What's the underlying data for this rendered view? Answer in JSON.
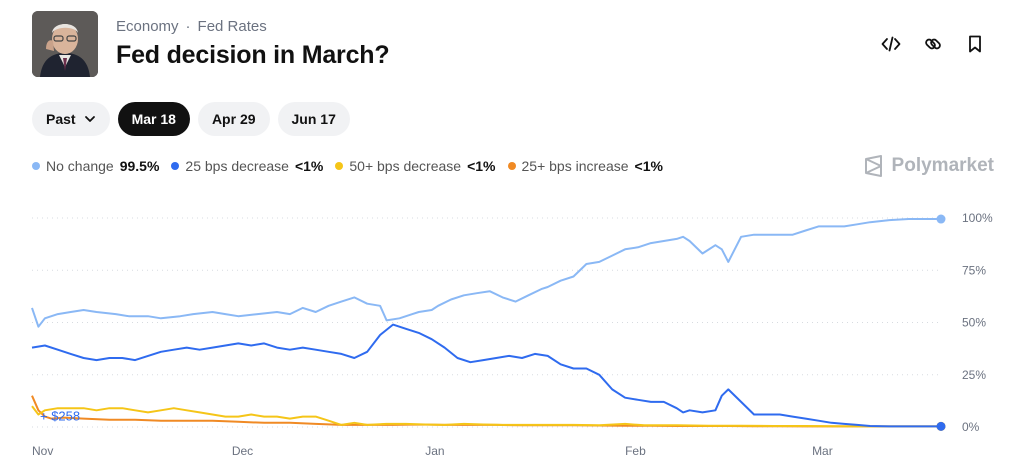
{
  "header": {
    "breadcrumb": [
      "Economy",
      "Fed Rates"
    ],
    "breadcrumb_separator": "·",
    "title": "Fed decision in March?",
    "avatar_icon": "person-portrait"
  },
  "actions": [
    {
      "name": "embed-button",
      "icon": "code-icon"
    },
    {
      "name": "copy-link-button",
      "icon": "link-icon"
    },
    {
      "name": "bookmark-button",
      "icon": "bookmark-icon"
    }
  ],
  "tabs": [
    {
      "label": "Past",
      "active": false,
      "dropdown": true
    },
    {
      "label": "Mar 18",
      "active": true
    },
    {
      "label": "Apr 29",
      "active": false
    },
    {
      "label": "Jun 17",
      "active": false
    }
  ],
  "legend": [
    {
      "label": "No change",
      "value": "99.5%",
      "color": "#8ab8f5"
    },
    {
      "label": "25 bps decrease",
      "value": "<1%",
      "color": "#2f6bef"
    },
    {
      "label": "50+ bps decrease",
      "value": "<1%",
      "color": "#f5c518"
    },
    {
      "label": "25+ bps increase",
      "value": "<1%",
      "color": "#f08a24"
    }
  ],
  "brand": "Polymarket",
  "annotation": "+ $258",
  "chart_data": {
    "type": "line",
    "x_ticks": [
      "Nov",
      "Dec",
      "Jan",
      "Feb",
      "Mar"
    ],
    "x_tick_days": [
      0,
      31,
      61,
      92,
      121
    ],
    "x_range": [
      0,
      141
    ],
    "ylim": [
      0,
      100
    ],
    "y_ticks": [
      "100%",
      "75%",
      "50%",
      "25%",
      "0%"
    ],
    "y_tick_values": [
      100,
      75,
      50,
      25,
      0
    ],
    "grid": true,
    "series": [
      {
        "name": "No change",
        "color": "#8ab8f5",
        "x": [
          0,
          1,
          2,
          4,
          6,
          8,
          10,
          13,
          15,
          18,
          20,
          23,
          25,
          28,
          30,
          32,
          35,
          38,
          40,
          42,
          44,
          46,
          48,
          50,
          52,
          54,
          55,
          57,
          59,
          60,
          62,
          63,
          65,
          67,
          69,
          71,
          73,
          75,
          77,
          79,
          80,
          82,
          84,
          86,
          88,
          90,
          92,
          94,
          96,
          98,
          100,
          101,
          102,
          104,
          106,
          107,
          108,
          110,
          112,
          114,
          116,
          118,
          120,
          122,
          124,
          126,
          128,
          130,
          133,
          136,
          139,
          141
        ],
        "y": [
          57,
          48,
          52,
          54,
          55,
          56,
          55,
          54,
          53,
          53,
          52,
          53,
          54,
          55,
          54,
          53,
          54,
          55,
          54,
          57,
          55,
          58,
          60,
          62,
          59,
          58,
          51,
          52,
          54,
          55,
          56,
          58,
          61,
          63,
          64,
          65,
          62,
          60,
          63,
          66,
          67,
          70,
          72,
          78,
          79,
          82,
          85,
          86,
          88,
          89,
          90,
          91,
          89,
          83,
          87,
          85,
          79,
          91,
          92,
          92,
          92,
          92,
          94,
          96,
          96,
          96,
          97,
          98,
          99,
          99.5,
          99.5,
          99.5
        ]
      },
      {
        "name": "25 bps decrease",
        "color": "#2f6bef",
        "x": [
          0,
          2,
          4,
          6,
          8,
          10,
          12,
          14,
          16,
          18,
          20,
          22,
          24,
          26,
          28,
          30,
          32,
          34,
          36,
          38,
          40,
          42,
          44,
          46,
          48,
          50,
          52,
          54,
          56,
          58,
          60,
          62,
          64,
          66,
          68,
          70,
          72,
          74,
          76,
          78,
          80,
          82,
          84,
          86,
          88,
          90,
          92,
          94,
          96,
          98,
          100,
          101,
          102,
          104,
          106,
          107,
          108,
          110,
          112,
          114,
          116,
          118,
          120,
          122,
          124,
          126,
          128,
          130,
          133,
          136,
          139,
          141
        ],
        "y": [
          38,
          39,
          37,
          35,
          33,
          32,
          33,
          33,
          32,
          34,
          36,
          37,
          38,
          37,
          38,
          39,
          40,
          39,
          40,
          38,
          37,
          38,
          37,
          36,
          35,
          33,
          36,
          44,
          49,
          47,
          45,
          42,
          38,
          33,
          31,
          32,
          33,
          34,
          33,
          35,
          34,
          30,
          28,
          28,
          25,
          18,
          14,
          13,
          12,
          12,
          9,
          7,
          8,
          7,
          8,
          15,
          18,
          12,
          6,
          6,
          6,
          5,
          4,
          3,
          2,
          1.5,
          1,
          0.5,
          0.3,
          0.3,
          0.3,
          0.3
        ]
      },
      {
        "name": "50+ bps decrease",
        "color": "#f5c518",
        "x": [
          0,
          1,
          2,
          4,
          6,
          8,
          10,
          12,
          14,
          16,
          18,
          20,
          22,
          24,
          26,
          28,
          30,
          32,
          34,
          36,
          38,
          40,
          42,
          44,
          46,
          48,
          50,
          52,
          55,
          58,
          61,
          64,
          67,
          70,
          73,
          76,
          80,
          84,
          88,
          92,
          95,
          100,
          105,
          110,
          115,
          120,
          125,
          130,
          135,
          141
        ],
        "y": [
          10,
          6,
          8,
          9,
          9,
          9,
          8,
          9,
          9,
          8,
          7,
          8,
          9,
          8,
          7,
          6,
          5,
          5,
          6,
          5,
          5,
          4,
          5,
          5,
          3,
          1,
          2,
          1,
          1.5,
          1.5,
          1.2,
          1,
          1.5,
          1.2,
          1,
          1,
          1,
          1,
          0.8,
          1.5,
          0.8,
          0.8,
          0.6,
          0.6,
          0.5,
          0.5,
          0.4,
          0.3,
          0.3,
          0.3
        ]
      },
      {
        "name": "25+ bps increase",
        "color": "#f08a24",
        "x": [
          0,
          1,
          2,
          3,
          5,
          8,
          12,
          16,
          20,
          24,
          28,
          32,
          36,
          40,
          44,
          48,
          52,
          56,
          60,
          64,
          68,
          72,
          76,
          80,
          84,
          88,
          92,
          96,
          100,
          104,
          108,
          112,
          116,
          120,
          124,
          128,
          132,
          136,
          141
        ],
        "y": [
          15,
          8,
          5,
          4,
          4.5,
          4,
          3.5,
          3.5,
          3,
          3,
          3,
          2.5,
          2,
          2,
          1.5,
          1,
          1,
          1,
          1.2,
          1,
          1,
          1,
          0.8,
          0.8,
          0.8,
          0.7,
          0.6,
          0.6,
          0.5,
          0.5,
          0.5,
          0.4,
          0.4,
          0.3,
          0.3,
          0.3,
          0.3,
          0.3,
          0.3
        ]
      }
    ]
  }
}
